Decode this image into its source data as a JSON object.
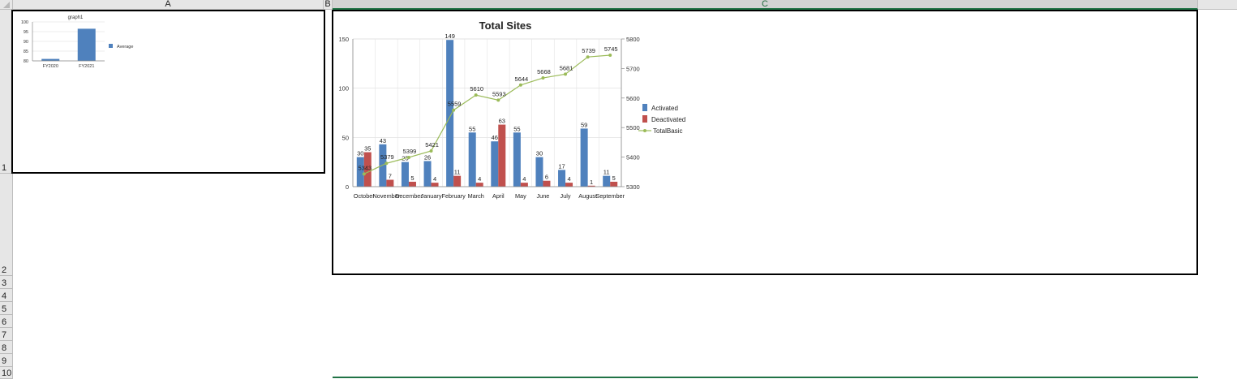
{
  "sheet": {
    "columns": [
      "A",
      "B",
      "C"
    ],
    "rows": [
      "1",
      "2",
      "3",
      "4",
      "5",
      "6",
      "7",
      "8",
      "9",
      "10"
    ]
  },
  "charts": [
    {
      "name": "graph1",
      "chart_data": {
        "type": "bar",
        "title": "graph1",
        "categories": [
          "FY2020",
          "FY2021"
        ],
        "series": [
          {
            "name": "Average",
            "color": "#4f81bd",
            "values": [
              81,
              96.5
            ]
          }
        ],
        "y_ticks": [
          "80",
          "85",
          "90",
          "95",
          "100"
        ],
        "ylim": [
          80,
          100
        ],
        "legend": "right",
        "grid": true
      }
    },
    {
      "name": "Total Sites",
      "chart_data": {
        "type": "bar",
        "title": "Total Sites",
        "categories": [
          "October",
          "November",
          "December",
          "January",
          "February",
          "March",
          "April",
          "May",
          "June",
          "July",
          "August",
          "September"
        ],
        "series": [
          {
            "name": "Activated",
            "type": "bar",
            "axis": "left",
            "color": "#4f81bd",
            "values": [
              30,
              43,
              25,
              26,
              149,
              55,
              46,
              55,
              30,
              17,
              59,
              11
            ]
          },
          {
            "name": "Deactivated",
            "type": "bar",
            "axis": "left",
            "color": "#c0504d",
            "values": [
              35,
              7,
              5,
              4,
              11,
              4,
              63,
              4,
              6,
              4,
              1,
              5
            ]
          },
          {
            "name": "TotalBasic",
            "type": "line",
            "axis": "right",
            "color": "#9bbb59",
            "values": [
              5343,
              5379,
              5399,
              5421,
              5559,
              5610,
              5593,
              5644,
              5668,
              5681,
              5739,
              5745
            ]
          }
        ],
        "y_left_ticks": [
          "0",
          "50",
          "100",
          "150"
        ],
        "ylim_left": [
          0,
          150
        ],
        "y_right_ticks": [
          "5300",
          "5400",
          "5500",
          "5600",
          "5700",
          "5800"
        ],
        "ylim_right": [
          5300,
          5800
        ],
        "legend": "right",
        "grid": true
      }
    }
  ]
}
